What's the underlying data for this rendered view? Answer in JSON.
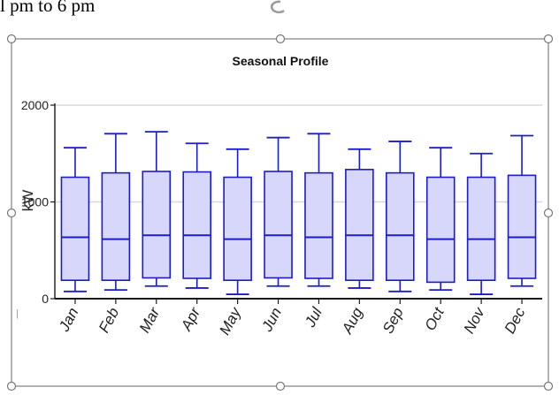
{
  "document": {
    "clipped_text": "l pm to 6 pm"
  },
  "chart_data": {
    "type": "box",
    "title": "Seasonal Profile",
    "ylabel": "kW",
    "xlabel": "",
    "ylim": [
      0,
      2000
    ],
    "yticks": [
      0,
      1000,
      2000
    ],
    "grid": true,
    "categories": [
      "Jan",
      "Feb",
      "Mar",
      "Apr",
      "May",
      "Jun",
      "Jul",
      "Aug",
      "Sep",
      "Oct",
      "Nov",
      "Dec"
    ],
    "boxes": [
      {
        "min": 75,
        "q1": 190,
        "median": 635,
        "q3": 1255,
        "max": 1560
      },
      {
        "min": 90,
        "q1": 190,
        "median": 615,
        "q3": 1300,
        "max": 1705
      },
      {
        "min": 130,
        "q1": 215,
        "median": 655,
        "q3": 1315,
        "max": 1725
      },
      {
        "min": 110,
        "q1": 210,
        "median": 655,
        "q3": 1310,
        "max": 1605
      },
      {
        "min": 45,
        "q1": 190,
        "median": 615,
        "q3": 1255,
        "max": 1545
      },
      {
        "min": 130,
        "q1": 215,
        "median": 655,
        "q3": 1315,
        "max": 1665
      },
      {
        "min": 130,
        "q1": 210,
        "median": 635,
        "q3": 1300,
        "max": 1705
      },
      {
        "min": 110,
        "q1": 190,
        "median": 655,
        "q3": 1335,
        "max": 1545
      },
      {
        "min": 75,
        "q1": 190,
        "median": 655,
        "q3": 1300,
        "max": 1625
      },
      {
        "min": 90,
        "q1": 170,
        "median": 615,
        "q3": 1255,
        "max": 1560
      },
      {
        "min": 45,
        "q1": 190,
        "median": 615,
        "q3": 1255,
        "max": 1500
      },
      {
        "min": 130,
        "q1": 210,
        "median": 635,
        "q3": 1275,
        "max": 1685
      }
    ],
    "colors": {
      "box_fill": "#d7d7fb",
      "box_stroke": "#1c1cc8",
      "grid": "#d8d8d8",
      "axis": "#1a1a1a",
      "selection": "#7f7f7f"
    }
  }
}
